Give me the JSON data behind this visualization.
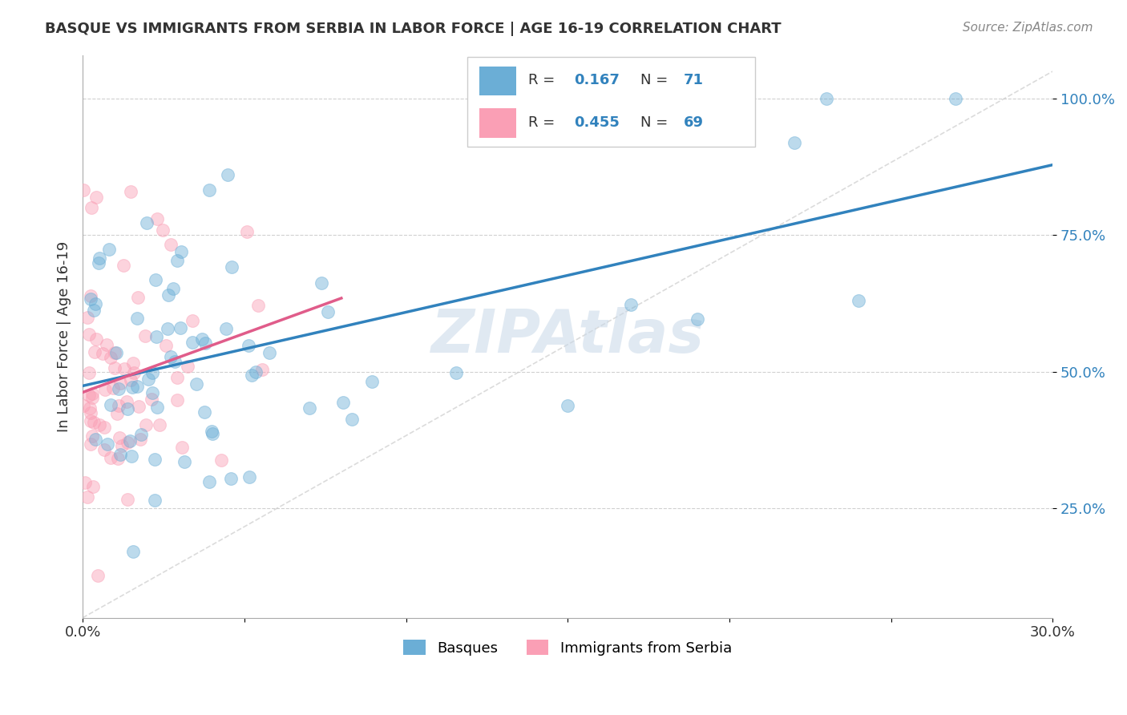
{
  "title": "BASQUE VS IMMIGRANTS FROM SERBIA IN LABOR FORCE | AGE 16-19 CORRELATION CHART",
  "source": "Source: ZipAtlas.com",
  "ylabel": "In Labor Force | Age 16-19",
  "xmin": 0.0,
  "xmax": 0.3,
  "ymin": 0.05,
  "ymax": 1.08,
  "ytick_positions": [
    0.25,
    0.5,
    0.75,
    1.0
  ],
  "ytick_labels": [
    "25.0%",
    "50.0%",
    "75.0%",
    "100.0%"
  ],
  "xtick_positions": [
    0.0,
    0.05,
    0.1,
    0.15,
    0.2,
    0.25,
    0.3
  ],
  "xtick_labels": [
    "0.0%",
    "",
    "",
    "",
    "",
    "",
    "30.0%"
  ],
  "legend_R1": "0.167",
  "legend_N1": "71",
  "legend_R2": "0.455",
  "legend_N2": "69",
  "blue_color": "#6baed6",
  "pink_color": "#fa9fb5",
  "blue_line_color": "#3182bd",
  "pink_line_color": "#e05c8a",
  "ref_line_color": "#cccccc",
  "watermark": "ZIPAtlas",
  "watermark_color": "#c8d8e8",
  "legend_text_color": "#333333",
  "legend_value_color": "#3182bd"
}
